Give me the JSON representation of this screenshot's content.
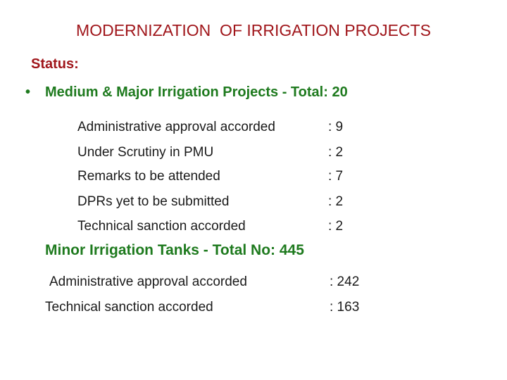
{
  "title": "MODERNIZATION  OF IRRIGATION PROJECTS",
  "status_label": "Status:",
  "bullet_marker": "•",
  "major": {
    "heading": "Medium & Major Irrigation Projects - Total: 20",
    "items": [
      {
        "label": "Administrative approval accorded",
        "value": ": 9"
      },
      {
        "label": "Under Scrutiny in PMU",
        "value": ": 2"
      },
      {
        "label": "Remarks to be attended",
        "value": ": 7"
      },
      {
        "label": "DPRs yet to be submitted",
        "value": ": 2"
      },
      {
        "label": "Technical sanction accorded",
        "value": ": 2"
      }
    ]
  },
  "minor": {
    "heading": "Minor Irrigation Tanks - Total No: 445",
    "items": [
      {
        "label": "Administrative approval accorded",
        "value": ": 242"
      },
      {
        "label": "Technical sanction accorded",
        "value": ": 163"
      }
    ]
  },
  "colors": {
    "title": "#a0161b",
    "heading": "#1e7a1e",
    "text": "#1a1a1a"
  }
}
